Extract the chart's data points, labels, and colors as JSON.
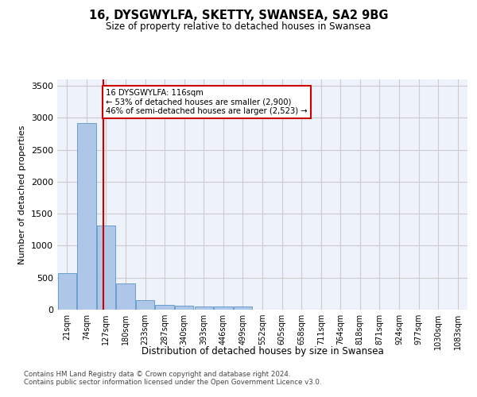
{
  "title": "16, DYSGWYLFA, SKETTY, SWANSEA, SA2 9BG",
  "subtitle": "Size of property relative to detached houses in Swansea",
  "xlabel_bottom": "Distribution of detached houses by size in Swansea",
  "ylabel": "Number of detached properties",
  "bin_labels": [
    "21sqm",
    "74sqm",
    "127sqm",
    "180sqm",
    "233sqm",
    "287sqm",
    "340sqm",
    "393sqm",
    "446sqm",
    "499sqm",
    "552sqm",
    "605sqm",
    "658sqm",
    "711sqm",
    "764sqm",
    "818sqm",
    "871sqm",
    "924sqm",
    "977sqm",
    "1030sqm",
    "1083sqm"
  ],
  "bar_values": [
    570,
    2920,
    1310,
    410,
    155,
    80,
    60,
    55,
    45,
    45,
    0,
    0,
    0,
    0,
    0,
    0,
    0,
    0,
    0,
    0,
    0
  ],
  "bar_color": "#aec6e8",
  "bar_edge_color": "#5a96c8",
  "vline_x": 1.85,
  "vline_color": "#cc0000",
  "annotation_text": "16 DYSGWYLFA: 116sqm\n← 53% of detached houses are smaller (2,900)\n46% of semi-detached houses are larger (2,523) →",
  "annotation_box_color": "#cc0000",
  "ylim": [
    0,
    3600
  ],
  "yticks": [
    0,
    500,
    1000,
    1500,
    2000,
    2500,
    3000,
    3500
  ],
  "grid_color": "#cccccc",
  "bg_color": "#eef2fa",
  "footnote1": "Contains HM Land Registry data © Crown copyright and database right 2024.",
  "footnote2": "Contains public sector information licensed under the Open Government Licence v3.0."
}
